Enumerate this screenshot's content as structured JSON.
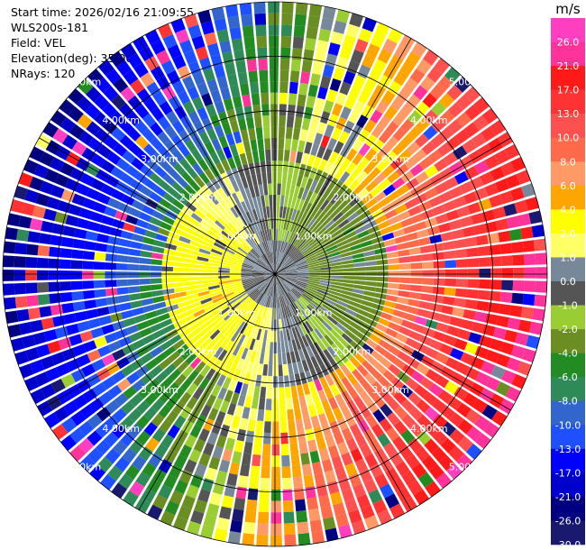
{
  "header": {
    "start_time": "Start time: 2026/02/16 21:09:55",
    "station": "WLS200s-181",
    "field": "Field: VEL",
    "elevation": "Elevation(deg): 35.00",
    "nrays": "NRays: 120"
  },
  "chart_data": {
    "type": "ppi-polar",
    "title": "VEL",
    "nrays": 120,
    "ngates": 24,
    "max_range_km": 5.0,
    "range_rings_km": [
      1.0,
      2.0,
      3.0,
      4.0,
      5.0
    ],
    "ring_labels": [
      "1.00km",
      "2.00km",
      "3.00km",
      "4.00km",
      "5.00km"
    ],
    "colorbar": {
      "unit": "m/s",
      "ticks": [
        "26.0",
        "21.0",
        "17.0",
        "13.0",
        "10.0",
        "8.0",
        "6.0",
        "4.0",
        "2.0",
        "1.0",
        "0.0",
        "-1.0",
        "-2.0",
        "-4.0",
        "-6.0",
        "-8.0",
        "-10.0",
        "-13.0",
        "-17.0",
        "-21.0",
        "-26.0",
        "-30.0"
      ],
      "levels": [
        30,
        26,
        21,
        17,
        13,
        10,
        8,
        6,
        4,
        2,
        1,
        0,
        -1,
        -2,
        -4,
        -6,
        -8,
        -10,
        -13,
        -17,
        -21,
        -26,
        -30
      ],
      "colors": [
        "#ff3fbf",
        "#ff3399",
        "#ff1a1a",
        "#ff3333",
        "#ff5050",
        "#ff6a4a",
        "#ff9966",
        "#ffa500",
        "#ffff00",
        "#ffff66",
        "#778899",
        "#555555",
        "#9acd32",
        "#6b8e23",
        "#228b22",
        "#2e8b57",
        "#3366cc",
        "#1e50ff",
        "#0000ff",
        "#0000cd",
        "#000080",
        "#191970"
      ]
    },
    "field_model": {
      "inner_positive_center_deg": 255,
      "outer_positive_center_deg": 105,
      "noise_fraction": 0.35,
      "peak_speed_ms": 27
    }
  }
}
